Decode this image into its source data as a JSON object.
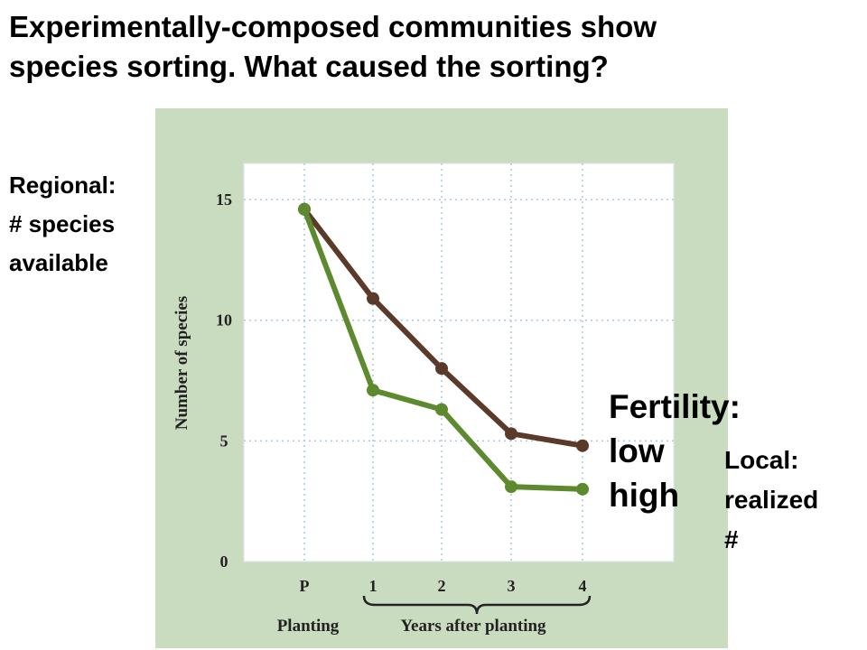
{
  "title_lines": [
    "Experimentally-composed communities show",
    "species sorting.  What caused the sorting?"
  ],
  "notes": {
    "regional": [
      "Regional:",
      "# species",
      "available"
    ],
    "fertility": [
      "Fertility:",
      "low",
      "high"
    ],
    "local": [
      "Local:",
      "realized",
      "#"
    ]
  },
  "colors": {
    "low_fertility": "#5b3a29",
    "high_fertility": "#5e8a2f",
    "panel": "#c9dcc0",
    "gridline": "#a9c9df"
  },
  "chart_data": {
    "type": "line",
    "ylabel": "Number of species",
    "xlabel_planting": "Planting",
    "xlabel_years": "Years after planting",
    "categories": [
      "P",
      "1",
      "2",
      "3",
      "4"
    ],
    "yticks": [
      "0",
      "5",
      "10",
      "15"
    ],
    "ylim": [
      0,
      16.5
    ],
    "grid": true,
    "series": [
      {
        "key": "low",
        "values": [
          14.6,
          10.9,
          8.0,
          5.3,
          4.8
        ]
      },
      {
        "key": "high",
        "values": [
          14.6,
          7.1,
          6.3,
          3.1,
          3.0
        ]
      }
    ]
  }
}
